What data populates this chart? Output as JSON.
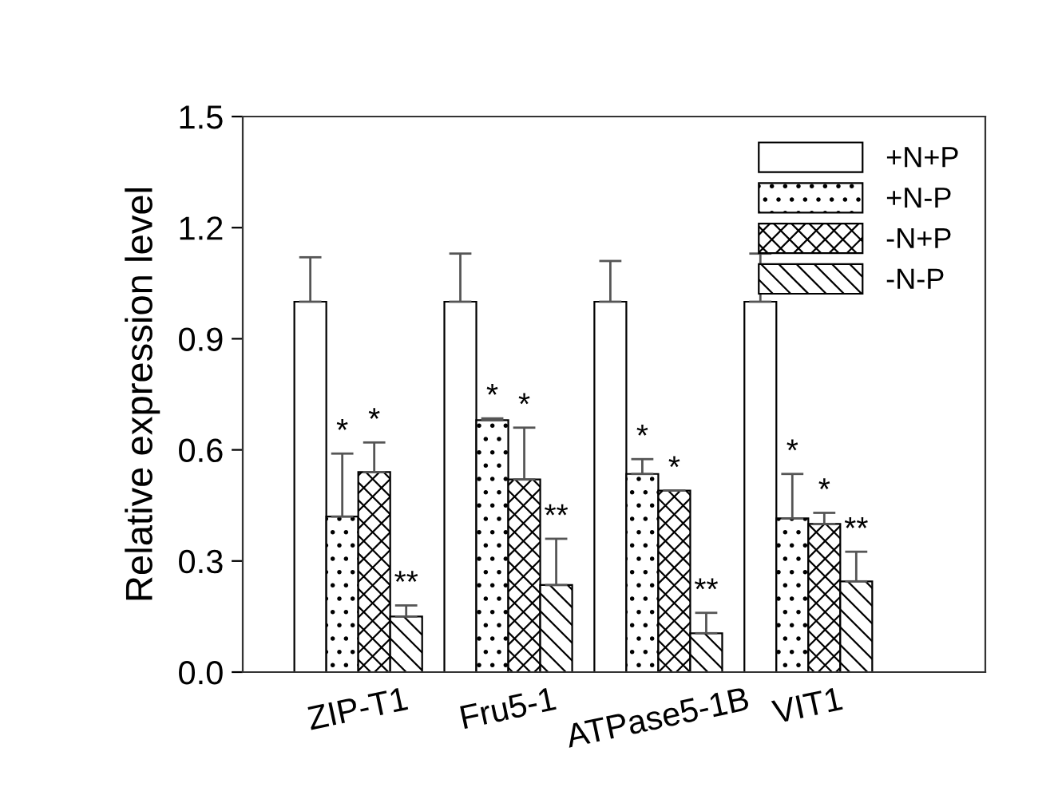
{
  "chart_data": {
    "type": "bar",
    "ylabel": "Relative expression level",
    "categories": [
      "ZIP-T1",
      "Fru5-1",
      "ATPase5-1B",
      "VIT1"
    ],
    "series": [
      {
        "name": "+N+P",
        "color": "#ffffff",
        "values": [
          1.0,
          1.0,
          1.0,
          1.0
        ],
        "errors": [
          0.12,
          0.13,
          0.11,
          0.13
        ]
      },
      {
        "name": "+N-P",
        "color": "#000000",
        "values": [
          0.42,
          0.68,
          0.535,
          0.415
        ],
        "errors": [
          0.17,
          0.005,
          0.04,
          0.12
        ]
      },
      {
        "name": "-N+P",
        "color": "#000000",
        "values": [
          0.54,
          0.52,
          0.49,
          0.4
        ],
        "errors": [
          0.08,
          0.14,
          0.0,
          0.03
        ]
      },
      {
        "name": "-N-P",
        "color": "#000000",
        "values": [
          0.15,
          0.235,
          0.105,
          0.245
        ],
        "errors": [
          0.03,
          0.125,
          0.055,
          0.08
        ]
      }
    ],
    "ylim": [
      0,
      1.5
    ],
    "yticks": [
      {
        "value": 0,
        "label": "0.0"
      },
      0.3,
      0.6,
      0.9,
      1.2,
      1.5
    ],
    "grid": false,
    "legend": "top right",
    "annotations": [
      {
        "text": "*",
        "x": "ZIP-T1",
        "y": 0.42
      },
      {
        "text": "*",
        "x": "ZIP-T1",
        "y": 0.54
      },
      {
        "text": "**",
        "x": "ZIP-T1",
        "y": 0.15
      },
      {
        "text": "*",
        "x": "Fru5-1",
        "y": 0.68
      },
      {
        "text": "*",
        "x": "Fru5-1",
        "y": 0.52
      },
      {
        "text": "**",
        "x": "Fru5-1",
        "y": 0.235
      },
      {
        "text": "*",
        "x": "ATPase5-1B",
        "y": 0.535
      },
      {
        "text": "*",
        "x": "ATPase5-1B",
        "y": 0.49
      },
      {
        "text": "**",
        "x": "ATPase5-1B",
        "y": 0.105
      },
      {
        "text": "*",
        "x": "VIT1",
        "y": 0.415
      },
      {
        "text": "*",
        "x": "VIT1",
        "y": 0.4
      },
      {
        "text": "**",
        "x": "VIT1",
        "y": 0.245
      }
    ]
  }
}
